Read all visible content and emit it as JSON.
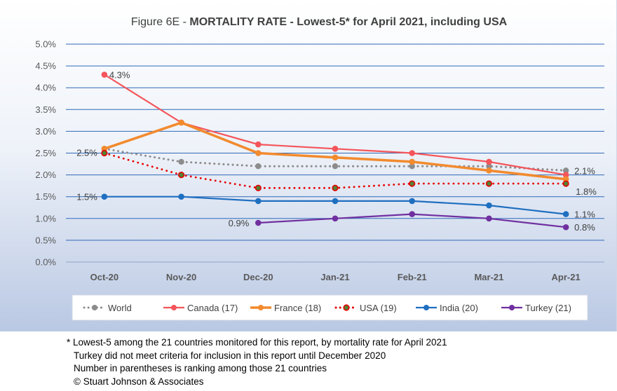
{
  "chart_data": {
    "type": "line",
    "title_prefix": "Figure 6E  - ",
    "title_main": "MORTALITY RATE - Lowest-5* for April 2021, including USA",
    "categories": [
      "Oct-20",
      "Nov-20",
      "Dec-20",
      "Jan-21",
      "Feb-21",
      "Mar-21",
      "Apr-21"
    ],
    "ylim": [
      0,
      5
    ],
    "y_ticks": [
      "0.0%",
      "0.5%",
      "1.0%",
      "1.5%",
      "2.0%",
      "2.5%",
      "3.0%",
      "3.5%",
      "4.0%",
      "4.5%",
      "5.0%"
    ],
    "grid": true,
    "legend_position": "bottom",
    "series": [
      {
        "name": "World",
        "color": "#8c8c8c",
        "style": "dotted",
        "values": [
          2.6,
          2.3,
          2.2,
          2.2,
          2.2,
          2.2,
          2.1
        ]
      },
      {
        "name": "Canada (17)",
        "color": "#f4555a",
        "style": "solid",
        "values": [
          4.3,
          3.2,
          2.7,
          2.6,
          2.5,
          2.3,
          2.0
        ]
      },
      {
        "name": "France (18)",
        "color": "#f28a2e",
        "style": "solid-thick",
        "values": [
          2.6,
          3.2,
          2.5,
          2.4,
          2.3,
          2.1,
          1.9
        ]
      },
      {
        "name": "USA (19)",
        "color": "#e60000",
        "style": "dotted",
        "values": [
          2.5,
          2.0,
          1.7,
          1.7,
          1.8,
          1.8,
          1.8
        ]
      },
      {
        "name": "India (20)",
        "color": "#1f6fc1",
        "style": "solid",
        "values": [
          1.5,
          1.5,
          1.4,
          1.4,
          1.4,
          1.3,
          1.1
        ]
      },
      {
        "name": "Turkey (21)",
        "color": "#7030a0",
        "style": "solid",
        "values": [
          null,
          null,
          0.9,
          1.0,
          1.1,
          1.0,
          0.8
        ]
      }
    ],
    "data_labels": [
      {
        "text": "4.3%",
        "series": "Canada (17)",
        "category": "Oct-20"
      },
      {
        "text": "2.5%",
        "series": "USA (19)",
        "category": "Oct-20"
      },
      {
        "text": "1.5%",
        "series": "India (20)",
        "category": "Oct-20"
      },
      {
        "text": "0.9%",
        "series": "Turkey (21)",
        "category": "Dec-20"
      },
      {
        "text": "2.1%",
        "series": "World",
        "category": "Apr-21"
      },
      {
        "text": "1.8%",
        "series": "USA (19)",
        "category": "Apr-21"
      },
      {
        "text": "1.1%",
        "series": "India (20)",
        "category": "Apr-21"
      },
      {
        "text": "0.8%",
        "series": "Turkey (21)",
        "category": "Apr-21"
      }
    ]
  },
  "footnotes": [
    "* Lowest-5 among the 21 countries monitored for this report, by mortality rate for April 2021",
    "Turkey did not meet criteria for inclusion in this report until December 2020",
    "Number in parentheses is ranking among those 21 countries",
    "© Stuart Johnson & Associates"
  ]
}
